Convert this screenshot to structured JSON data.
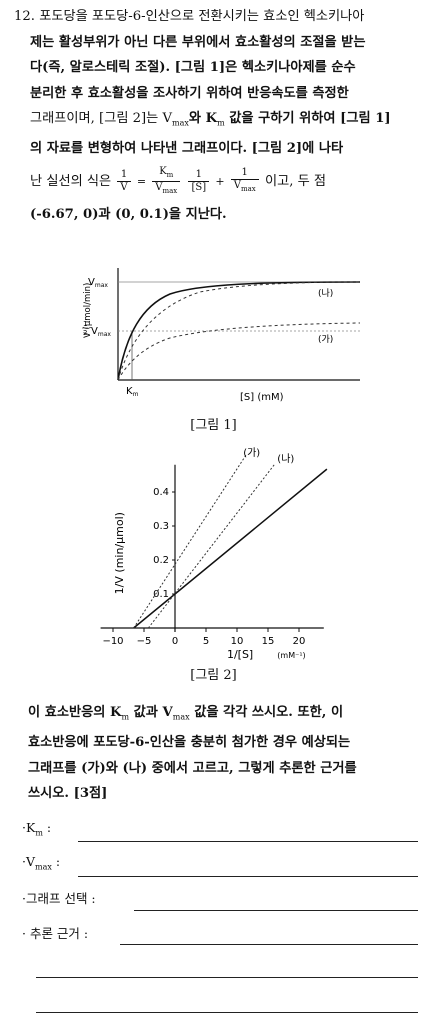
{
  "question": {
    "number": "12.",
    "line1": "포도당을 포도당-6-인산으로 전환시키는 효소인 헥소키나아",
    "line2": "제는 활성부위가 아닌 다른 부위에서 효소활성의 조절을 받는",
    "line3": "다(즉, 알로스테릭 조절). [그림 1]은 헥소키나아제를 순수",
    "line4": "분리한 후 효소활성을 조사하기 위하여 반응속도를 측정한",
    "line5a": "그래프이며, [그림 2]는 V",
    "line5b": "max",
    "line5c": "와 K",
    "line5d": "m",
    "line5e": " 값을 구하기 위하여 [그림 1]",
    "line6": "의 자료를 변형하여 나타낸 그래프이다. [그림 2]에 나타",
    "line7a": "난 실선의 식은",
    "line7b": "이고, 두 점",
    "line8": "(-6.67, 0)과 (0, 0.1)을 지난다.",
    "eq": {
      "lhs_num": "1",
      "lhs_den": "V",
      "eq": "=",
      "k_num": "K",
      "k_num_sub": "m",
      "k_den": "V",
      "k_den_sub": "max",
      "s_num": "1",
      "s_den": "[S]",
      "plus": "+",
      "r_num": "1",
      "r_den": "V",
      "r_den_sub": "max"
    }
  },
  "figure1": {
    "caption": "[그림 1]",
    "y_label": "V (μmol/min)",
    "x_label": "[S] (mM)",
    "vmax_label": "V",
    "vmax_sub": "max",
    "half_num": "1",
    "half_den": "2",
    "half_label": "V",
    "half_sub": "max",
    "km_label": "K",
    "km_sub": "m",
    "curve_label_na": "(나)",
    "curve_label_ga": "(가)"
  },
  "figure2": {
    "caption": "[그림 2]",
    "y_label": "1/V (min/μmol)",
    "x_label": "1/[S]",
    "x_unit": "(mM⁻¹)",
    "x_ticks": [
      "−10",
      "−5",
      "0",
      "5",
      "10",
      "15",
      "20"
    ],
    "y_ticks": [
      "0.1",
      "0.2",
      "0.3",
      "0.4"
    ],
    "line_label_ga": "(가)",
    "line_label_na": "(나)"
  },
  "instructions": {
    "line1": "이 효소반응의 K",
    "line1_sub": "m",
    "line1b": " 값과 V",
    "line1b_sub": "max",
    "line1c": " 값을 각각 쓰시오. 또한, 이",
    "line2": "효소반응에 포도당-6-인산을 충분히 첨가한 경우 예상되는",
    "line3": "그래프를 (가)와 (나) 중에서 고르고, 그렇게 추론한 근거를",
    "line4": "쓰시오. [3점]"
  },
  "answers": {
    "km_label": "·K",
    "km_sub": "m",
    "km_colon": " :",
    "vmax_label": "·V",
    "vmax_sub": "max",
    "vmax_colon": " :",
    "graph_label": "·그래프 선택 :",
    "reason_label": "· 추론 근거 :"
  }
}
